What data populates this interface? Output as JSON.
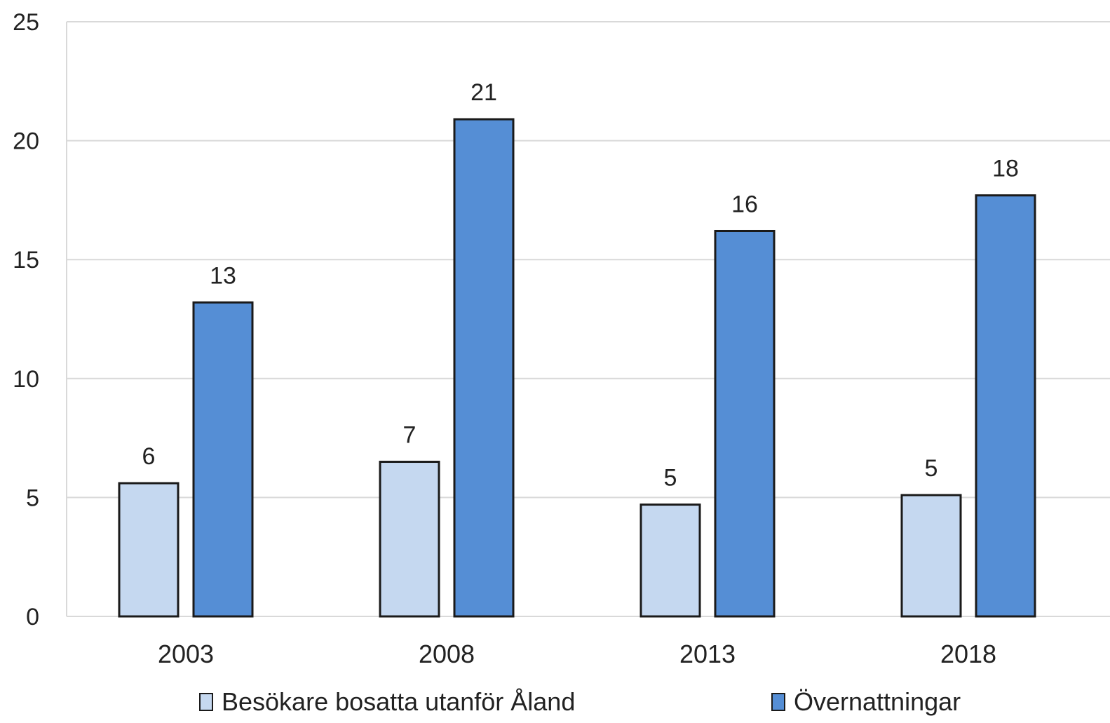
{
  "chart_data": {
    "type": "bar",
    "categories": [
      "2003",
      "2008",
      "2013",
      "2018"
    ],
    "series": [
      {
        "name": "Besökare bosatta utanför Åland",
        "values": [
          5.6,
          6.5,
          4.7,
          5.1
        ],
        "labels": [
          "6",
          "7",
          "5",
          "5"
        ],
        "color": "#c5d8f0"
      },
      {
        "name": "Övernattningar",
        "values": [
          13.2,
          20.9,
          16.2,
          17.7
        ],
        "labels": [
          "13",
          "21",
          "16",
          "18"
        ],
        "color": "#558ed5"
      }
    ],
    "yticks": [
      "0",
      "5",
      "10",
      "15",
      "20",
      "25"
    ],
    "ylim": [
      0,
      25
    ],
    "grid": true,
    "legend_position": "bottom",
    "title": "",
    "xlabel": "",
    "ylabel": ""
  }
}
